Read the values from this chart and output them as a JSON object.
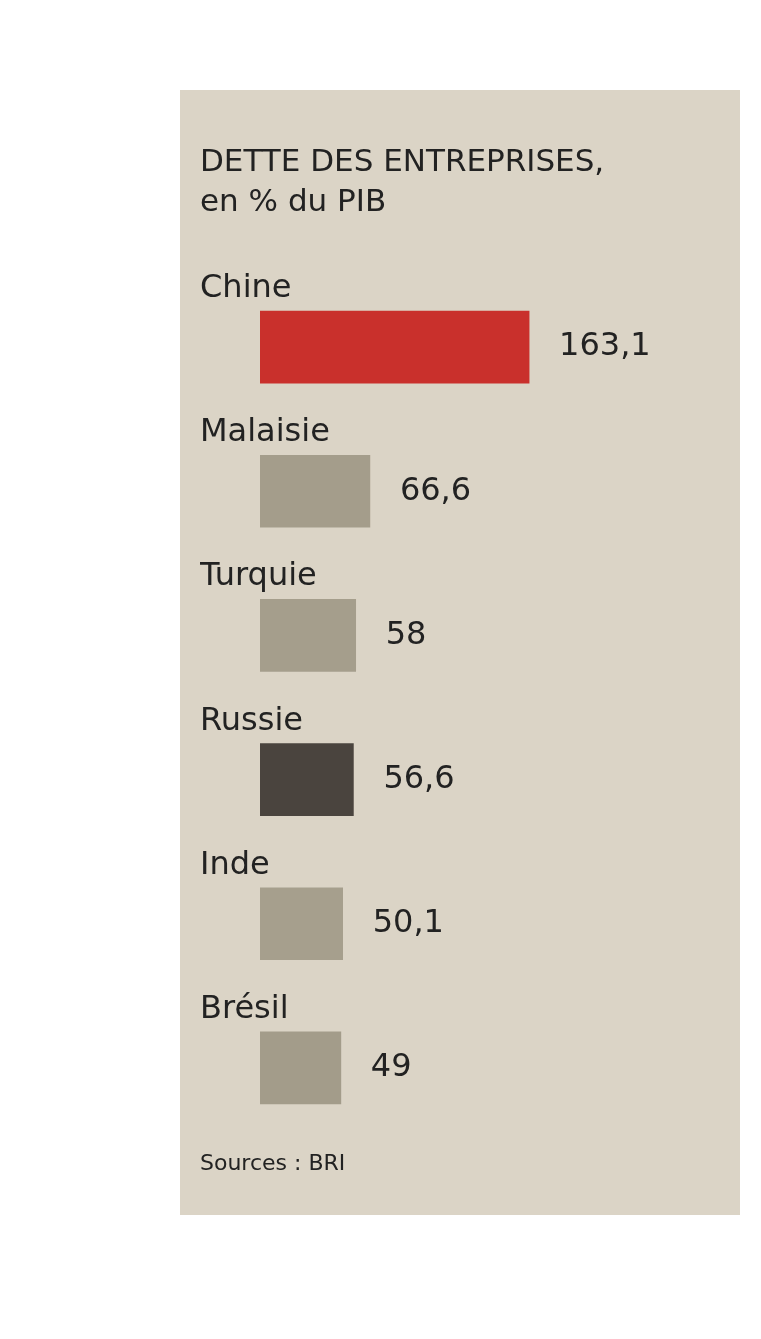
{
  "chart_data": {
    "type": "bar",
    "orientation": "horizontal",
    "title": "DETTE DES ENTREPRISES,",
    "subtitle": "en % du PIB",
    "categories": [
      "Chine",
      "Malaisie",
      "Turquie",
      "Russie",
      "Inde",
      "Brésil"
    ],
    "values": [
      163.1,
      66.6,
      58,
      56.6,
      50.1,
      49
    ],
    "colors": [
      "#c9302c",
      "#a49d8b",
      "#a59e8c",
      "#4a443e",
      "#a69f8d",
      "#a39c8a"
    ],
    "value_labels": [
      "163,1",
      "66,6",
      "58",
      "56,6",
      "50,1",
      "49"
    ],
    "annotations": [
      "Sources : BRI"
    ]
  }
}
